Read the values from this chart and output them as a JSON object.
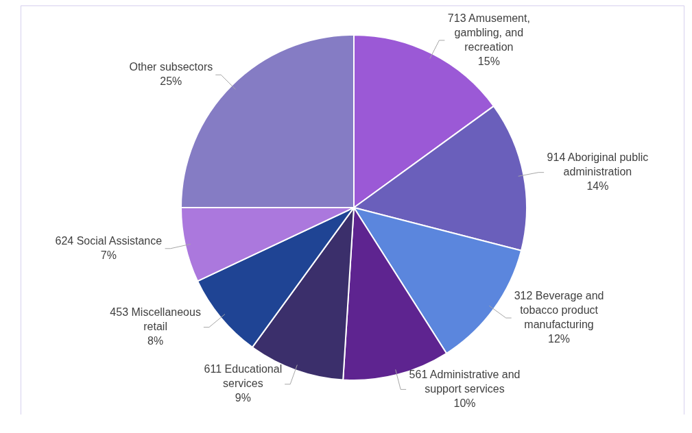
{
  "chart_data": {
    "type": "pie",
    "categories": [
      "713 Amusement, gambling, and recreation",
      "914 Aboriginal public administration",
      "312 Beverage and tobacco product manufacturing",
      "561 Administrative and support services",
      "611 Educational services",
      "453 Miscellaneous retail",
      "624 Social Assistance",
      "Other subsectors"
    ],
    "values": [
      15,
      14,
      12,
      10,
      9,
      8,
      7,
      25
    ],
    "value_labels": [
      "15%",
      "14%",
      "12%",
      "10%",
      "9%",
      "8%",
      "7%",
      "25%"
    ],
    "colors": [
      "#9b59d6",
      "#6a5fbb",
      "#5b86dd",
      "#5e2490",
      "#3b2f6b",
      "#1f4494",
      "#ab78dd",
      "#857cc4"
    ],
    "legend": false
  }
}
